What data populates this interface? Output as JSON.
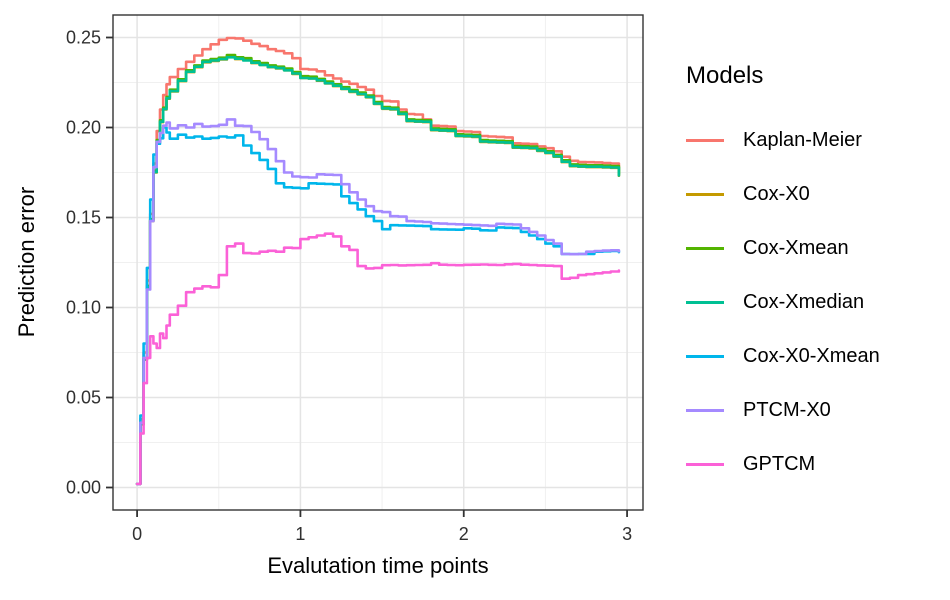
{
  "figure": {
    "y_axis_title": "Prediction error",
    "x_axis_title": "Evalutation time points",
    "legend_title": "Models"
  },
  "chart_data": {
    "type": "line",
    "step": true,
    "title": "",
    "xlabel": "Evalutation time points",
    "ylabel": "Prediction error",
    "xlim": [
      -0.1475,
      3.0975
    ],
    "ylim": [
      -0.0125,
      0.2625
    ],
    "grid": true,
    "legend_position": "right",
    "legend_title": "Models",
    "x_ticks": [
      {
        "value": 0,
        "label": "0"
      },
      {
        "value": 1,
        "label": "1"
      },
      {
        "value": 2,
        "label": "2"
      },
      {
        "value": 3,
        "label": "3"
      }
    ],
    "y_ticks": [
      {
        "value": 0.0,
        "label": "0.00"
      },
      {
        "value": 0.05,
        "label": "0.05"
      },
      {
        "value": 0.1,
        "label": "0.10"
      },
      {
        "value": 0.15,
        "label": "0.15"
      },
      {
        "value": 0.2,
        "label": "0.20"
      },
      {
        "value": 0.25,
        "label": "0.25"
      }
    ],
    "x_minor": [
      0.5,
      1.5,
      2.5
    ],
    "y_minor": [
      0.025,
      0.075,
      0.125,
      0.175,
      0.225
    ],
    "x": [
      0.0,
      0.02,
      0.04,
      0.06,
      0.08,
      0.1,
      0.12,
      0.14,
      0.16,
      0.18,
      0.2,
      0.25,
      0.3,
      0.35,
      0.4,
      0.45,
      0.5,
      0.55,
      0.6,
      0.65,
      0.7,
      0.75,
      0.8,
      0.85,
      0.9,
      0.95,
      1.0,
      1.05,
      1.1,
      1.15,
      1.2,
      1.25,
      1.3,
      1.35,
      1.4,
      1.45,
      1.5,
      1.55,
      1.6,
      1.65,
      1.7,
      1.75,
      1.8,
      1.85,
      1.9,
      1.95,
      2.0,
      2.05,
      2.1,
      2.15,
      2.2,
      2.25,
      2.3,
      2.35,
      2.4,
      2.45,
      2.5,
      2.55,
      2.6,
      2.65,
      2.7,
      2.75,
      2.8,
      2.85,
      2.9,
      2.95
    ],
    "series": [
      {
        "name": "Kaplan-Meier",
        "color": "#F8766D",
        "values": [
          0.002,
          0.038,
          0.075,
          0.115,
          0.152,
          0.18,
          0.198,
          0.21,
          0.218,
          0.224,
          0.228,
          0.2325,
          0.2365,
          0.24,
          0.2435,
          0.2462,
          0.2487,
          0.2497,
          0.2495,
          0.2482,
          0.2465,
          0.2452,
          0.2435,
          0.2425,
          0.2412,
          0.2385,
          0.2325,
          0.2322,
          0.2312,
          0.229,
          0.2272,
          0.2255,
          0.2243,
          0.2225,
          0.221,
          0.2175,
          0.2148,
          0.2145,
          0.21,
          0.2075,
          0.2072,
          0.2045,
          0.201,
          0.2008,
          0.2005,
          0.198,
          0.1978,
          0.1975,
          0.1953,
          0.195,
          0.1948,
          0.1945,
          0.1912,
          0.191,
          0.1908,
          0.1895,
          0.1885,
          0.1868,
          0.1838,
          0.1815,
          0.1808,
          0.1807,
          0.1806,
          0.1802,
          0.18,
          0.178
        ]
      },
      {
        "name": "Cox-X0",
        "color": "#C49A00",
        "values": [
          0.002,
          0.035,
          0.071,
          0.111,
          0.148,
          0.175,
          0.192,
          0.203,
          0.21,
          0.216,
          0.22,
          0.2258,
          0.2308,
          0.2335,
          0.2362,
          0.237,
          0.2378,
          0.2392,
          0.238,
          0.2375,
          0.2358,
          0.2348,
          0.2335,
          0.2328,
          0.2318,
          0.2298,
          0.2275,
          0.2272,
          0.226,
          0.2245,
          0.223,
          0.2214,
          0.2198,
          0.2184,
          0.2168,
          0.2131,
          0.2104,
          0.21,
          0.2074,
          0.2035,
          0.2032,
          0.203,
          0.1985,
          0.1982,
          0.198,
          0.1952,
          0.195,
          0.1948,
          0.192,
          0.1918,
          0.1916,
          0.1914,
          0.1888,
          0.1886,
          0.1884,
          0.187,
          0.1858,
          0.1838,
          0.1808,
          0.1785,
          0.1782,
          0.178,
          0.178,
          0.1778,
          0.1776,
          0.1732
        ]
      },
      {
        "name": "Cox-Xmean",
        "color": "#53B400",
        "values": [
          0.002,
          0.036,
          0.072,
          0.112,
          0.149,
          0.176,
          0.193,
          0.204,
          0.211,
          0.217,
          0.221,
          0.2268,
          0.2318,
          0.2345,
          0.2372,
          0.238,
          0.2388,
          0.2402,
          0.239,
          0.2385,
          0.2368,
          0.2358,
          0.2345,
          0.2338,
          0.2328,
          0.2308,
          0.2285,
          0.2282,
          0.227,
          0.2255,
          0.224,
          0.2224,
          0.2208,
          0.2194,
          0.2178,
          0.2141,
          0.2114,
          0.211,
          0.2084,
          0.2045,
          0.2042,
          0.204,
          0.1995,
          0.1992,
          0.199,
          0.1962,
          0.196,
          0.1958,
          0.193,
          0.1928,
          0.1926,
          0.1924,
          0.1898,
          0.1896,
          0.1894,
          0.188,
          0.1868,
          0.1848,
          0.1818,
          0.1795,
          0.1792,
          0.179,
          0.179,
          0.1788,
          0.1786,
          0.1742
        ]
      },
      {
        "name": "Cox-Xmedian",
        "color": "#00C094",
        "values": [
          0.002,
          0.0355,
          0.0712,
          0.1114,
          0.1482,
          0.1752,
          0.1922,
          0.2032,
          0.2102,
          0.2162,
          0.2202,
          0.226,
          0.231,
          0.2338,
          0.2365,
          0.2372,
          0.238,
          0.239,
          0.2382,
          0.2372,
          0.236,
          0.2348,
          0.2336,
          0.233,
          0.2318,
          0.23,
          0.2275,
          0.2272,
          0.2262,
          0.2246,
          0.2232,
          0.2215,
          0.22,
          0.2186,
          0.217,
          0.2133,
          0.2106,
          0.2102,
          0.2076,
          0.2037,
          0.2034,
          0.2032,
          0.1987,
          0.1984,
          0.1982,
          0.1954,
          0.1952,
          0.195,
          0.1922,
          0.192,
          0.1918,
          0.1916,
          0.189,
          0.1888,
          0.1886,
          0.1872,
          0.186,
          0.184,
          0.181,
          0.1787,
          0.1784,
          0.1782,
          0.1782,
          0.178,
          0.1778,
          0.1734
        ]
      },
      {
        "name": "Cox-X0-Xmean",
        "color": "#00B6EB",
        "values": [
          0.002,
          0.04,
          0.08,
          0.122,
          0.16,
          0.185,
          0.191,
          0.194,
          0.2,
          0.1972,
          0.1938,
          0.196,
          0.1944,
          0.195,
          0.1938,
          0.1942,
          0.195,
          0.1945,
          0.1956,
          0.19,
          0.1858,
          0.182,
          0.177,
          0.169,
          0.1668,
          0.1665,
          0.1662,
          0.169,
          0.1688,
          0.1686,
          0.1684,
          0.1618,
          0.158,
          0.1545,
          0.1507,
          0.148,
          0.1435,
          0.1457,
          0.1456,
          0.1455,
          0.1454,
          0.1452,
          0.1435,
          0.1434,
          0.1433,
          0.1432,
          0.144,
          0.1438,
          0.1429,
          0.1428,
          0.1445,
          0.1443,
          0.1441,
          0.142,
          0.14,
          0.138,
          0.1355,
          0.134,
          0.1297,
          0.1296,
          0.1297,
          0.1298,
          0.131,
          0.1312,
          0.1314,
          0.1308
        ]
      },
      {
        "name": "PTCM-X0",
        "color": "#A58AFF",
        "values": [
          0.002,
          0.036,
          0.072,
          0.11,
          0.148,
          0.178,
          0.192,
          0.197,
          0.201,
          0.2028,
          0.1995,
          0.2012,
          0.2,
          0.202,
          0.2005,
          0.2008,
          0.2015,
          0.2045,
          0.201,
          0.2008,
          0.1975,
          0.1935,
          0.188,
          0.1813,
          0.175,
          0.1728,
          0.1724,
          0.1722,
          0.174,
          0.1738,
          0.1736,
          0.1685,
          0.164,
          0.16,
          0.1563,
          0.1535,
          0.153,
          0.1507,
          0.1505,
          0.148,
          0.1478,
          0.1475,
          0.1468,
          0.1466,
          0.1464,
          0.1462,
          0.146,
          0.1458,
          0.1456,
          0.1454,
          0.1465,
          0.1463,
          0.1461,
          0.144,
          0.142,
          0.14,
          0.1375,
          0.1355,
          0.1297,
          0.1296,
          0.1297,
          0.131,
          0.1314,
          0.1316,
          0.1318,
          0.1312
        ]
      },
      {
        "name": "GPTCM",
        "color": "#FB61D7",
        "values": [
          0.002,
          0.03,
          0.058,
          0.072,
          0.084,
          0.08,
          0.0775,
          0.0855,
          0.083,
          0.09,
          0.096,
          0.101,
          0.1085,
          0.1105,
          0.1118,
          0.1112,
          0.118,
          0.134,
          0.1355,
          0.1302,
          0.13,
          0.131,
          0.1315,
          0.131,
          0.1332,
          0.133,
          0.138,
          0.139,
          0.14,
          0.141,
          0.1395,
          0.134,
          0.132,
          0.123,
          0.1217,
          0.122,
          0.1235,
          0.1236,
          0.1234,
          0.1235,
          0.1236,
          0.1237,
          0.1246,
          0.1238,
          0.1236,
          0.1235,
          0.1237,
          0.1238,
          0.1239,
          0.1237,
          0.1236,
          0.124,
          0.1242,
          0.1238,
          0.1236,
          0.1234,
          0.1232,
          0.123,
          0.116,
          0.1165,
          0.118,
          0.1185,
          0.119,
          0.1195,
          0.12,
          0.1205
        ]
      }
    ]
  }
}
